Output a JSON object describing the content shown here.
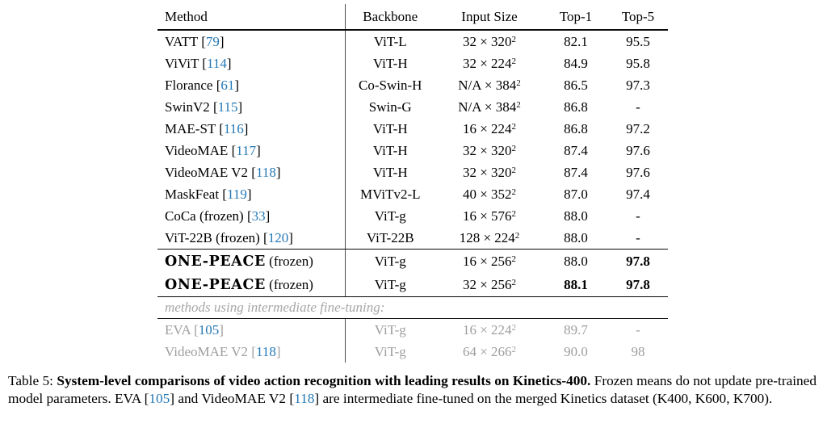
{
  "colors": {
    "citation_blue": "#2478b5",
    "muted_gray": "#9e9e9e",
    "rule_black": "#0a0a0a"
  },
  "table": {
    "headers": [
      "Method",
      "Backbone",
      "Input Size",
      "Top-1",
      "Top-5"
    ],
    "input_exponent": "2",
    "multiply_sign": "×",
    "rows": [
      {
        "method": "VATT",
        "cite": "79",
        "backbone": "ViT-L",
        "frames": "32",
        "res": "320",
        "top1": "82.1",
        "top5": "95.5"
      },
      {
        "method": "ViViT",
        "cite": "114",
        "backbone": "ViT-H",
        "frames": "32",
        "res": "224",
        "top1": "84.9",
        "top5": "95.8"
      },
      {
        "method": "Florance",
        "cite": "61",
        "backbone": "Co-Swin-H",
        "frames": "N/A",
        "res": "384",
        "top1": "86.5",
        "top5": "97.3"
      },
      {
        "method": "SwinV2",
        "cite": "115",
        "backbone": "Swin-G",
        "frames": "N/A",
        "res": "384",
        "top1": "86.8",
        "top5": "-"
      },
      {
        "method": "MAE-ST",
        "cite": "116",
        "backbone": "ViT-H",
        "frames": "16",
        "res": "224",
        "top1": "86.8",
        "top5": "97.2"
      },
      {
        "method": "VideoMAE",
        "cite": "117",
        "backbone": "ViT-H",
        "frames": "32",
        "res": "320",
        "top1": "87.4",
        "top5": "97.6"
      },
      {
        "method": "VideoMAE V2",
        "cite": "118",
        "backbone": "ViT-H",
        "frames": "32",
        "res": "320",
        "top1": "87.4",
        "top5": "97.6"
      },
      {
        "method": "MaskFeat",
        "cite": "119",
        "backbone": "MViTv2-L",
        "frames": "40",
        "res": "352",
        "top1": "87.0",
        "top5": "97.4"
      },
      {
        "method": "CoCa (frozen)",
        "cite": "33",
        "backbone": "ViT-g",
        "frames": "16",
        "res": "576",
        "top1": "88.0",
        "top5": "-"
      },
      {
        "method": "ViT-22B (frozen)",
        "cite": "120",
        "backbone": "ViT-22B",
        "frames": "128",
        "res": "224",
        "top1": "88.0",
        "top5": "-",
        "rule_below": true
      },
      {
        "method": "ONE-PEACE",
        "method_suffix": " (frozen)",
        "logo": true,
        "backbone": "ViT-g",
        "frames": "16",
        "res": "256",
        "top1": "88.0",
        "top5": "97.8",
        "top5_bold": true
      },
      {
        "method": "ONE-PEACE",
        "method_suffix": " (frozen)",
        "logo": true,
        "backbone": "ViT-g",
        "frames": "32",
        "res": "256",
        "top1": "88.1",
        "top1_bold": true,
        "top5": "97.8",
        "top5_bold": true,
        "rule_below": true
      },
      {
        "section": "methods using intermediate fine-tuning:",
        "rule_below": true
      },
      {
        "method": "EVA",
        "cite": "105",
        "gray": true,
        "backbone": "ViT-g",
        "frames": "16",
        "res": "224",
        "top1": "89.7",
        "top5": "-"
      },
      {
        "method": "VideoMAE V2",
        "cite": "118",
        "gray": true,
        "backbone": "ViT-g",
        "frames": "64",
        "res": "266",
        "top1": "90.0",
        "top5": "98"
      }
    ]
  },
  "caption": {
    "segments": [
      {
        "text": "Table 5: ",
        "style": "normal"
      },
      {
        "text": "System-level comparisons of video action recognition with leading results on Kinetics-400.",
        "style": "bold"
      },
      {
        "text": " Frozen means do not update pre-trained model parameters. EVA [",
        "style": "normal"
      },
      {
        "text": "105",
        "style": "cite"
      },
      {
        "text": "] and VideoMAE V2 [",
        "style": "normal"
      },
      {
        "text": "118",
        "style": "cite"
      },
      {
        "text": "] are intermediate fine-tuned on the merged Kinetics dataset (K400, K600, K700).",
        "style": "normal"
      }
    ]
  }
}
